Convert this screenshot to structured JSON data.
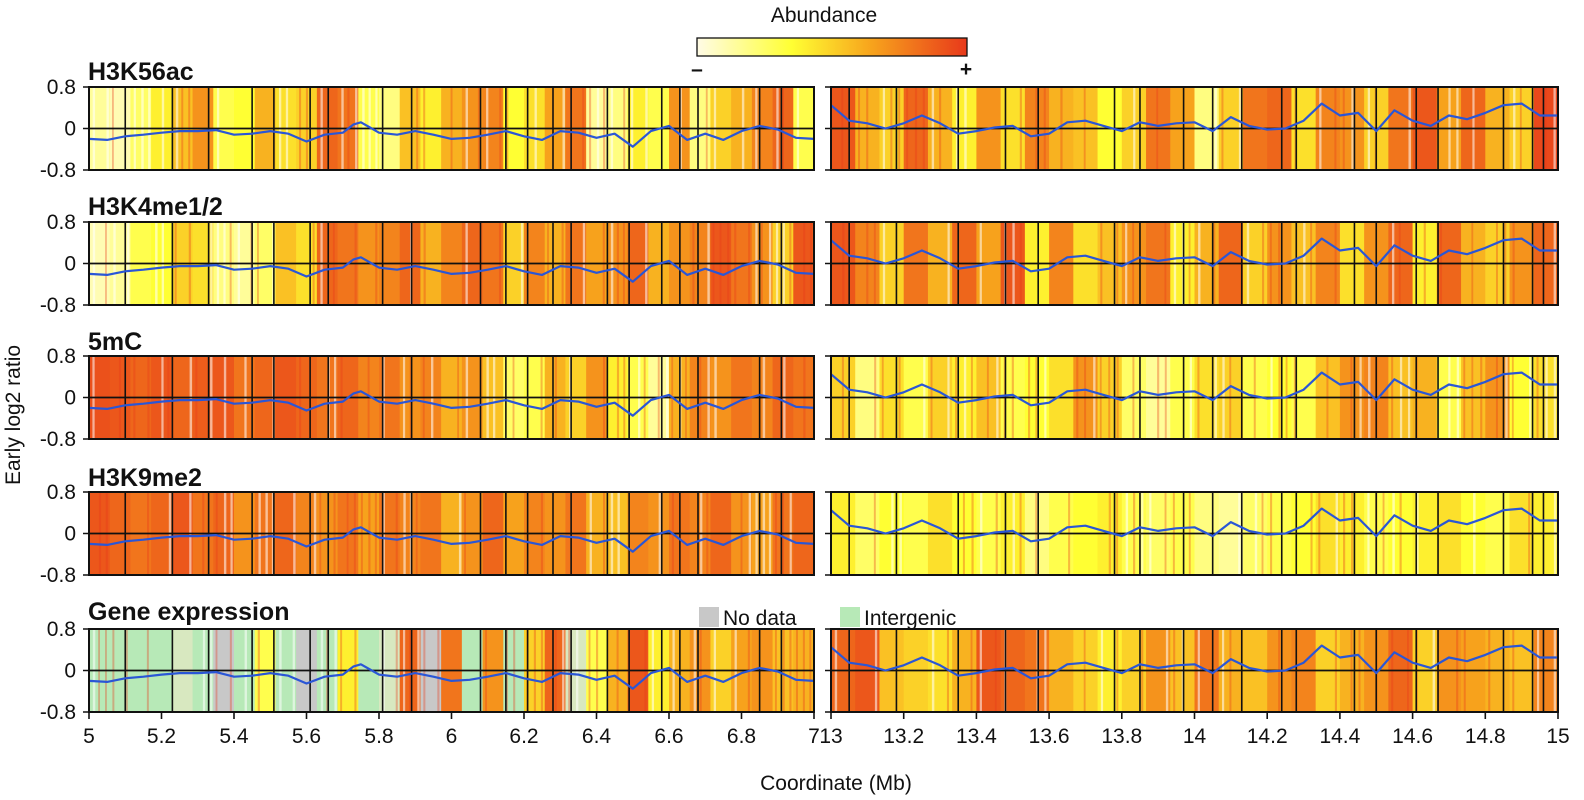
{
  "chart_data": {
    "type": "heatmap",
    "ylabel": "Early log2 ratio",
    "xlabel": "Coordinate (Mb)",
    "ylim": [
      -0.8,
      0.8
    ],
    "yticks": [
      "0.8",
      "0",
      "-0.8"
    ],
    "colorbar": {
      "title": "Abundance",
      "min_label": "–",
      "max_label": "+",
      "colors": [
        "#fffbe6",
        "#ffff33",
        "#f7a21c",
        "#e8391b"
      ]
    },
    "legend": {
      "no_data": {
        "label": "No data",
        "color": "#c8c8c8"
      },
      "intergenic": {
        "label": "Intergenic",
        "color": "#b7e9b7"
      }
    },
    "windows": [
      {
        "name": "left",
        "xlim": [
          5,
          7
        ],
        "xticks": [
          "5",
          "5.2",
          "5.4",
          "5.6",
          "5.8",
          "6",
          "6.2",
          "6.4",
          "6.6",
          "6.8",
          "7"
        ],
        "boundaries": [
          5.1,
          5.23,
          5.33,
          5.45,
          5.51,
          5.61,
          5.66,
          5.81,
          5.89,
          6.08,
          6.15,
          6.21,
          6.28,
          6.33,
          6.43,
          6.49,
          6.58,
          6.63,
          6.68,
          6.85,
          6.91
        ]
      },
      {
        "name": "right",
        "xlim": [
          13,
          15
        ],
        "xticks": [
          "13",
          "13.2",
          "13.4",
          "13.6",
          "13.8",
          "14",
          "14.2",
          "14.4",
          "14.6",
          "14.8",
          "15"
        ],
        "boundaries": [
          13.05,
          13.18,
          13.35,
          13.48,
          13.57,
          13.78,
          13.85,
          13.97,
          14.05,
          14.13,
          14.24,
          14.28,
          14.44,
          14.5,
          14.61,
          14.67,
          14.85,
          14.93,
          14.96
        ]
      }
    ],
    "profile_x_left": [
      5.0,
      5.05,
      5.1,
      5.15,
      5.2,
      5.25,
      5.3,
      5.35,
      5.4,
      5.45,
      5.5,
      5.55,
      5.6,
      5.65,
      5.7,
      5.73,
      5.75,
      5.78,
      5.8,
      5.85,
      5.9,
      5.95,
      6.0,
      6.05,
      6.1,
      6.15,
      6.2,
      6.25,
      6.3,
      6.35,
      6.4,
      6.45,
      6.5,
      6.55,
      6.6,
      6.65,
      6.7,
      6.75,
      6.8,
      6.85,
      6.9,
      6.95,
      7.0
    ],
    "profile_y_left": [
      -0.2,
      -0.22,
      -0.15,
      -0.12,
      -0.08,
      -0.05,
      -0.05,
      -0.03,
      -0.12,
      -0.1,
      -0.05,
      -0.1,
      -0.25,
      -0.12,
      -0.08,
      0.08,
      0.12,
      0.0,
      -0.08,
      -0.12,
      -0.05,
      -0.12,
      -0.2,
      -0.18,
      -0.12,
      -0.05,
      -0.15,
      -0.22,
      -0.05,
      -0.08,
      -0.18,
      -0.1,
      -0.35,
      -0.05,
      0.05,
      -0.22,
      -0.1,
      -0.22,
      -0.05,
      0.05,
      -0.02,
      -0.18,
      -0.2
    ],
    "profile_x_right": [
      13.0,
      13.05,
      13.1,
      13.15,
      13.2,
      13.25,
      13.3,
      13.35,
      13.4,
      13.45,
      13.5,
      13.55,
      13.6,
      13.65,
      13.7,
      13.75,
      13.8,
      13.85,
      13.9,
      13.95,
      14.0,
      14.05,
      14.1,
      14.15,
      14.2,
      14.25,
      14.3,
      14.35,
      14.4,
      14.45,
      14.5,
      14.55,
      14.6,
      14.65,
      14.7,
      14.75,
      14.8,
      14.85,
      14.9,
      14.95,
      15.0
    ],
    "profile_y_right": [
      0.45,
      0.15,
      0.1,
      0.0,
      0.1,
      0.25,
      0.1,
      -0.1,
      -0.05,
      0.02,
      0.05,
      -0.15,
      -0.1,
      0.12,
      0.15,
      0.05,
      -0.05,
      0.12,
      0.05,
      0.1,
      0.12,
      -0.05,
      0.22,
      0.05,
      -0.02,
      0.0,
      0.15,
      0.48,
      0.25,
      0.3,
      -0.05,
      0.35,
      0.15,
      0.05,
      0.25,
      0.18,
      0.3,
      0.45,
      0.48,
      0.25,
      0.25
    ],
    "tracks": [
      {
        "name": "H3K56ac",
        "left_bands": [
          0.15,
          0.1,
          0.25,
          0.4,
          0.55,
          0.7,
          0.3,
          0.35,
          0.6,
          0.45,
          0.5,
          0.85,
          0.8,
          0.3,
          0.2,
          0.55,
          0.4,
          0.6,
          0.7,
          0.75,
          0.35,
          0.45,
          0.65,
          0.8,
          0.15,
          0.2,
          0.4,
          0.3,
          0.7,
          0.2,
          0.5,
          0.6,
          0.75,
          0.85,
          0.3
        ],
        "right_bands": [
          0.9,
          0.6,
          0.5,
          0.85,
          0.6,
          0.4,
          0.7,
          0.45,
          0.75,
          0.6,
          0.55,
          0.35,
          0.5,
          0.8,
          0.65,
          0.2,
          0.5,
          0.8,
          0.85,
          0.45,
          0.75,
          0.7,
          0.5,
          0.8,
          0.9,
          0.65,
          0.85,
          0.6,
          0.5,
          0.95
        ]
      },
      {
        "name": "H3K4me1/2",
        "left_bands": [
          0.1,
          0.15,
          0.3,
          0.35,
          0.5,
          0.45,
          0.2,
          0.15,
          0.25,
          0.55,
          0.45,
          0.85,
          0.8,
          0.7,
          0.75,
          0.85,
          0.6,
          0.75,
          0.85,
          0.8,
          0.5,
          0.75,
          0.6,
          0.8,
          0.65,
          0.7,
          0.85,
          0.6,
          0.7,
          0.75,
          0.9,
          0.8,
          0.7,
          0.5,
          0.9
        ],
        "right_bands": [
          0.9,
          0.75,
          0.5,
          0.8,
          0.6,
          0.85,
          0.65,
          0.9,
          0.4,
          0.75,
          0.45,
          0.55,
          0.7,
          0.8,
          0.4,
          0.6,
          0.85,
          0.5,
          0.7,
          0.55,
          0.75,
          0.45,
          0.7,
          0.85,
          0.4,
          0.85,
          0.6,
          0.5,
          0.7,
          0.85
        ]
      },
      {
        "name": "5mC",
        "left_bands": [
          0.92,
          0.9,
          0.85,
          0.9,
          0.85,
          0.88,
          0.9,
          0.8,
          0.85,
          0.9,
          0.85,
          0.8,
          0.85,
          0.75,
          0.8,
          0.7,
          0.75,
          0.6,
          0.7,
          0.55,
          0.25,
          0.3,
          0.6,
          0.5,
          0.7,
          0.4,
          0.3,
          0.15,
          0.6,
          0.75,
          0.7,
          0.8,
          0.75,
          0.85,
          0.8
        ],
        "right_bands": [
          0.5,
          0.2,
          0.45,
          0.3,
          0.5,
          0.4,
          0.55,
          0.3,
          0.35,
          0.45,
          0.7,
          0.5,
          0.25,
          0.15,
          0.3,
          0.45,
          0.5,
          0.3,
          0.35,
          0.3,
          0.55,
          0.7,
          0.75,
          0.55,
          0.6,
          0.3,
          0.55,
          0.7,
          0.35,
          0.45
        ]
      },
      {
        "name": "H3K9me2",
        "left_bands": [
          0.9,
          0.85,
          0.8,
          0.85,
          0.9,
          0.8,
          0.85,
          0.7,
          0.8,
          0.85,
          0.75,
          0.7,
          0.8,
          0.65,
          0.8,
          0.75,
          0.8,
          0.6,
          0.7,
          0.85,
          0.65,
          0.75,
          0.7,
          0.8,
          0.6,
          0.55,
          0.75,
          0.7,
          0.8,
          0.75,
          0.85,
          0.7,
          0.65,
          0.8,
          0.85
        ],
        "right_bands": [
          0.4,
          0.25,
          0.35,
          0.3,
          0.45,
          0.35,
          0.3,
          0.4,
          0.2,
          0.3,
          0.35,
          0.4,
          0.3,
          0.25,
          0.3,
          0.2,
          0.15,
          0.25,
          0.3,
          0.35,
          0.45,
          0.4,
          0.3,
          0.35,
          0.4,
          0.45,
          0.35,
          0.3,
          0.45,
          0.4
        ]
      },
      {
        "name": "Gene expression",
        "left_bands": [
          "i",
          "i",
          "i",
          "i",
          "m",
          "i",
          "n",
          "i",
          0.3,
          "i",
          "n",
          "i",
          0.4,
          "i",
          "m",
          0.85,
          "n",
          0.8,
          "i",
          0.7,
          "i",
          0.5,
          0.85,
          "m",
          0.3,
          0.6,
          0.9,
          0.4,
          0.6,
          0.7,
          0.5,
          0.65,
          0.7,
          0.55,
          0.6
        ],
        "right_bands": [
          0.85,
          0.9,
          0.55,
          0.5,
          0.45,
          0.6,
          0.9,
          0.85,
          0.8,
          0.6,
          0.5,
          0.4,
          0.5,
          0.7,
          0.55,
          0.8,
          0.6,
          0.55,
          0.7,
          0.75,
          0.5,
          0.6,
          0.7,
          0.85,
          0.5,
          0.7,
          0.65,
          0.6,
          0.55,
          0.75
        ]
      }
    ]
  }
}
